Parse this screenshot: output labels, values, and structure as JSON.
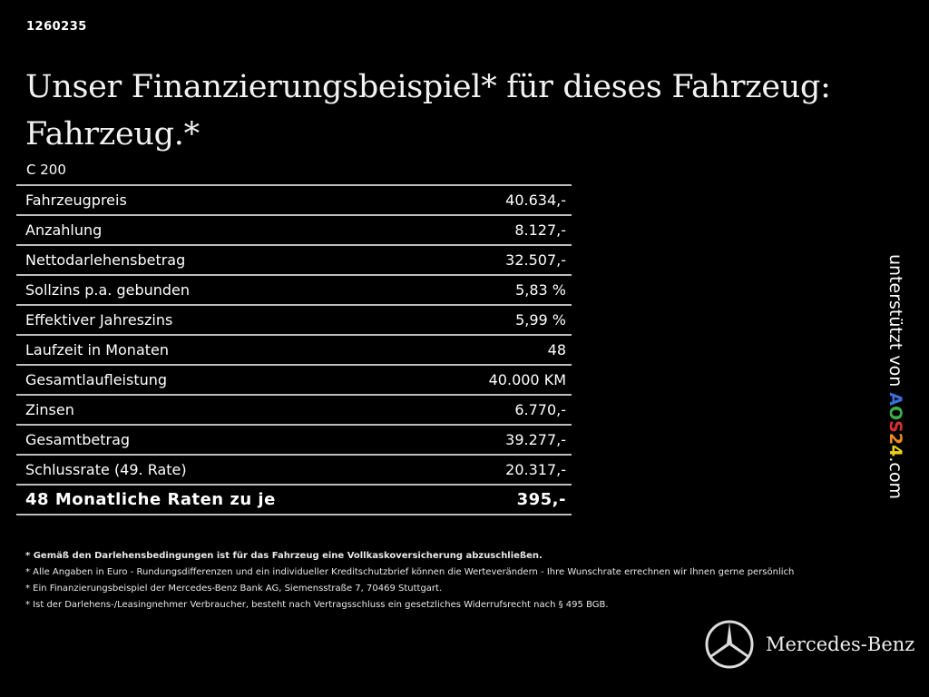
{
  "id": "1260235",
  "title_line1": "Unser Finanzierungsbeispiel* für dieses Fahrzeug:",
  "title_line2": "Fahrzeug.*",
  "model": "C 200",
  "rows": [
    {
      "label": "Fahrzeugpreis",
      "value": "40.634,-"
    },
    {
      "label": "Anzahlung",
      "value": "8.127,-"
    },
    {
      "label": "Nettodarlehensbetrag",
      "value": "32.507,-"
    },
    {
      "label": "Sollzins p.a. gebunden",
      "value": "5,83 %"
    },
    {
      "label": "Effektiver Jahreszins",
      "value": "5,99 %"
    },
    {
      "label": "Laufzeit in Monaten",
      "value": "48"
    },
    {
      "label": "Gesamtlaufleistung",
      "value": "40.000 KM"
    },
    {
      "label": "Zinsen",
      "value": "6.770,-"
    },
    {
      "label": "Gesamtbetrag",
      "value": "39.277,-"
    },
    {
      "label": "Schlussrate (49. Rate)",
      "value": "20.317,-"
    }
  ],
  "total": {
    "label": "48 Monatliche Raten zu je",
    "value": "395,-"
  },
  "notes": [
    "* Gemäß den Darlehensbedingungen ist für das Fahrzeug eine Vollkaskoversicherung abzuschließen.",
    "* Alle Angaben in Euro - Rundungsdifferenzen und ein individueller Kreditschutzbrief können die Werteverändern - Ihre Wunschrate errechnen wir Ihnen gerne persönlich",
    "* Ein Finanzierungsbeispiel der Mercedes-Benz Bank AG, Siemensstraße 7, 70469 Stuttgart.",
    "* Ist der Darlehens-/Leasingnehmer Verbraucher, besteht nach Vertragsschluss ein gesetzliches Widerrufsrecht nach § 495 BGB."
  ],
  "sidebar": {
    "prefix": "unterstützt von ",
    "aos": [
      "A",
      "O",
      "S",
      "2",
      "4"
    ],
    "aos_colors": [
      "#3a6fd8",
      "#3fae4a",
      "#d8322f",
      "#f08a24",
      "#e8d21e"
    ],
    "suffix": ".com"
  },
  "brand": {
    "name": "Mercedes-Benz",
    "icon": "mercedes-star-icon"
  }
}
